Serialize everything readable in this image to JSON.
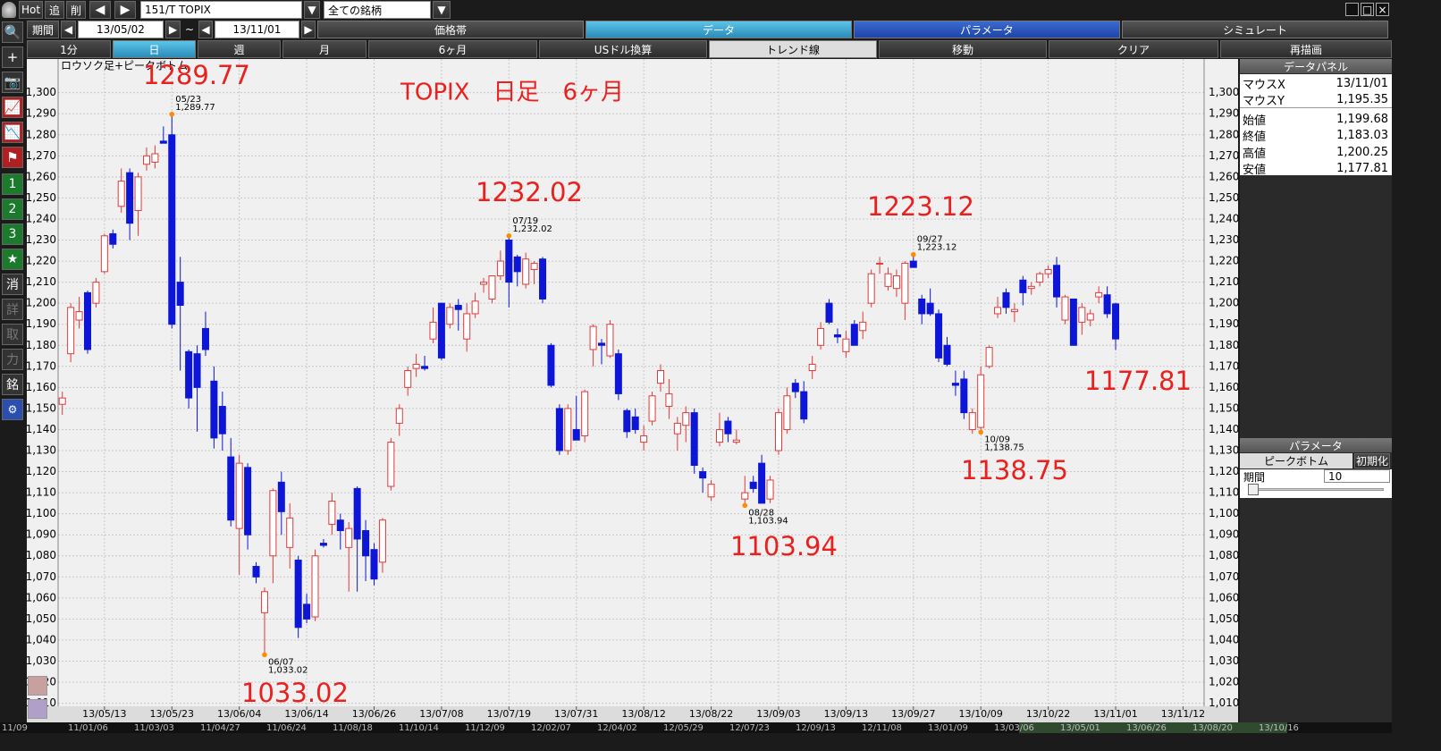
{
  "toolbar": {
    "hot": "Hot",
    "add": "追",
    "delete": "削",
    "symbol": "151/T TOPIX",
    "list": "全ての銘柄"
  },
  "period": {
    "label": "期間",
    "from": "13/05/02",
    "separator": "~",
    "to": "13/11/01"
  },
  "tabs": [
    "価格帯",
    "データ",
    "パラメータ",
    "シミュレート"
  ],
  "buttons": [
    "1分",
    "日",
    "週",
    "月",
    "6ヶ月",
    "USドル換算",
    "トレンド線",
    "移動",
    "クリア",
    "再描画"
  ],
  "side_tools": [
    "1",
    "2",
    "3",
    "★",
    "消",
    "詳",
    "取",
    "力",
    "銘"
  ],
  "data_panel": {
    "title": "データパネル",
    "rows": [
      [
        "マウスX",
        "13/11/01"
      ],
      [
        "マウスY",
        "1,195.35"
      ],
      [
        "始値",
        "1,199.68"
      ],
      [
        "終値",
        "1,183.03"
      ],
      [
        "高値",
        "1,200.25"
      ],
      [
        "安値",
        "1,177.81"
      ]
    ]
  },
  "param_panel": {
    "title": "パラメータ",
    "tab": "ピークボトム",
    "reset": "初期化",
    "field": "期間",
    "value": "10"
  },
  "timeline": [
    "11/09",
    "11/01/06",
    "11/03/03",
    "11/04/27",
    "11/06/24",
    "11/08/18",
    "11/10/14",
    "11/12/09",
    "12/02/07",
    "12/04/02",
    "12/05/29",
    "12/07/23",
    "12/09/13",
    "12/11/08",
    "13/01/09",
    "13/03/06",
    "13/05/01",
    "13/06/26",
    "13/08/20",
    "13/10/16"
  ],
  "chart_data": {
    "type": "candlestick",
    "indicator": "ロウソク足+ピークボトム",
    "title": "TOPIX　日足　6ヶ月",
    "categories": [
      null,
      null,
      null,
      null,
      null,
      "13/05/13",
      null,
      null,
      null,
      null,
      null,
      null,
      null,
      "13/05/23",
      null,
      null,
      null,
      null,
      null,
      null,
      null,
      "13/06/04",
      null,
      null,
      null,
      null,
      null,
      null,
      null,
      "13/06/14",
      null,
      null,
      null,
      null,
      null,
      null,
      null,
      "13/06/26",
      null,
      null,
      null,
      null,
      null,
      null,
      null,
      "13/07/08",
      null,
      null,
      null,
      null,
      null,
      null,
      null,
      "13/07/19",
      null,
      null,
      null,
      null,
      null,
      null,
      null,
      "13/07/31",
      null,
      null,
      null,
      null,
      null,
      null,
      null,
      "13/08/12",
      null,
      null,
      null,
      null,
      null,
      null,
      null,
      "13/08/22",
      null,
      null,
      null,
      null,
      null,
      null,
      null,
      "13/09/03",
      null,
      null,
      null,
      null,
      null,
      null,
      null,
      "13/09/13",
      null,
      null,
      null,
      null,
      null,
      null,
      null,
      "13/09/27",
      null,
      null,
      null,
      null,
      null,
      null,
      null,
      "13/10/09",
      null,
      null,
      null,
      null,
      null,
      null,
      null,
      "13/10/22",
      null,
      null,
      null,
      null,
      null,
      null,
      null,
      "13/11/01",
      null,
      null,
      null,
      null,
      null,
      null,
      null,
      "13/11/12",
      null,
      null
    ],
    "candles": [
      [
        1152,
        1158,
        1147,
        1155
      ],
      [
        1176,
        1200,
        1172,
        1198
      ],
      [
        1192,
        1203,
        1188,
        1196
      ],
      [
        1205,
        1206,
        1176,
        1178
      ],
      [
        1200,
        1212,
        1198,
        1210
      ],
      [
        1215,
        1233,
        1214,
        1232
      ],
      [
        1233,
        1235,
        1226,
        1228
      ],
      [
        1246,
        1264,
        1243,
        1258
      ],
      [
        1262,
        1264,
        1230,
        1238
      ],
      [
        1244,
        1262,
        1232,
        1260
      ],
      [
        1266,
        1274,
        1263,
        1270
      ],
      [
        1267,
        1275,
        1264,
        1271
      ],
      [
        1277,
        1284,
        1276,
        1276
      ],
      [
        1280,
        1289.77,
        1188,
        1190
      ],
      [
        1210,
        1222,
        1168,
        1199
      ],
      [
        1177,
        1178,
        1150,
        1155
      ],
      [
        1176,
        1180,
        1139,
        1160
      ],
      [
        1188,
        1196,
        1175,
        1178
      ],
      [
        1163,
        1170,
        1131,
        1136
      ],
      [
        1151,
        1158,
        1130,
        1138
      ],
      [
        1127,
        1136,
        1094,
        1097
      ],
      [
        1093,
        1128,
        1071,
        1124
      ],
      [
        1122,
        1124,
        1083,
        1090
      ],
      [
        1075,
        1077,
        1067,
        1070
      ],
      [
        1053,
        1065,
        1033.02,
        1063
      ],
      [
        1080,
        1112,
        1067,
        1111
      ],
      [
        1115,
        1120,
        1090,
        1101
      ],
      [
        1084,
        1105,
        1074,
        1098
      ],
      [
        1078,
        1080,
        1041,
        1046
      ],
      [
        1057,
        1062,
        1048,
        1050
      ],
      [
        1051,
        1083,
        1049,
        1080
      ],
      [
        1086,
        1088,
        1084,
        1085
      ],
      [
        1095,
        1110,
        1090,
        1106
      ],
      [
        1097,
        1100,
        1083,
        1092
      ],
      [
        1084,
        1096,
        1063,
        1093
      ],
      [
        1112,
        1113,
        1063,
        1088
      ],
      [
        1092,
        1097,
        1068,
        1080
      ],
      [
        1083,
        1086,
        1066,
        1069
      ],
      [
        1077,
        1098,
        1072,
        1097
      ],
      [
        1113,
        1136,
        1111,
        1134
      ],
      [
        1143,
        1152,
        1137,
        1150
      ],
      [
        1160,
        1170,
        1156,
        1168
      ],
      [
        1169,
        1176,
        1165,
        1171
      ],
      [
        1170,
        1175,
        1168,
        1169
      ],
      [
        1183,
        1198,
        1181,
        1191
      ],
      [
        1200,
        1200,
        1173,
        1174
      ],
      [
        1190,
        1200,
        1188,
        1198
      ],
      [
        1199,
        1202,
        1187,
        1197
      ],
      [
        1183,
        1200,
        1177,
        1195
      ],
      [
        1195,
        1205,
        1193,
        1201
      ],
      [
        1209,
        1212,
        1205,
        1210
      ],
      [
        1202,
        1213,
        1200,
        1213
      ],
      [
        1213,
        1225,
        1211,
        1220
      ],
      [
        1230,
        1232.02,
        1198,
        1210
      ],
      [
        1222,
        1223,
        1208,
        1215
      ],
      [
        1209,
        1224,
        1207,
        1221
      ],
      [
        1216,
        1220,
        1209,
        1219
      ],
      [
        1221,
        1222,
        1200,
        1202
      ],
      [
        1180,
        1181,
        1160,
        1161
      ],
      [
        1150,
        1152,
        1128,
        1130
      ],
      [
        1130,
        1152,
        1128,
        1150
      ],
      [
        1140,
        1156,
        1135,
        1135
      ],
      [
        1137,
        1159,
        1134,
        1158
      ],
      [
        1178,
        1190,
        1170,
        1189
      ],
      [
        1181,
        1183,
        1171,
        1180
      ],
      [
        1175,
        1192,
        1174,
        1190
      ],
      [
        1176,
        1178,
        1154,
        1157
      ],
      [
        1149,
        1150,
        1136,
        1139
      ],
      [
        1146,
        1150,
        1138,
        1140
      ],
      [
        1134,
        1142,
        1130,
        1137
      ],
      [
        1144,
        1158,
        1142,
        1156
      ],
      [
        1162,
        1171,
        1158,
        1168
      ],
      [
        1151,
        1164,
        1145,
        1157
      ],
      [
        1138,
        1146,
        1130,
        1143
      ],
      [
        1142,
        1151,
        1134,
        1148
      ],
      [
        1148,
        1150,
        1119,
        1123
      ],
      [
        1120,
        1122,
        1110,
        1117
      ],
      [
        1108,
        1116,
        1106,
        1114
      ],
      [
        1134,
        1148,
        1132,
        1140
      ],
      [
        1144,
        1146,
        1134,
        1138
      ],
      [
        1134,
        1140,
        1133,
        1135
      ],
      [
        1107,
        1118,
        1103.94,
        1110
      ],
      [
        1115,
        1118,
        1110,
        1112
      ],
      [
        1124,
        1128,
        1105,
        1105
      ],
      [
        1107,
        1118,
        1105,
        1116
      ],
      [
        1130,
        1150,
        1128,
        1148
      ],
      [
        1140,
        1160,
        1138,
        1156
      ],
      [
        1162,
        1164,
        1155,
        1158
      ],
      [
        1158,
        1163,
        1143,
        1145
      ],
      [
        1168,
        1175,
        1164,
        1171
      ],
      [
        1180,
        1191,
        1178,
        1188
      ],
      [
        1200,
        1202,
        1190,
        1191
      ],
      [
        1185,
        1188,
        1181,
        1184
      ],
      [
        1177,
        1187,
        1174,
        1183
      ],
      [
        1190,
        1192,
        1180,
        1180
      ],
      [
        1187,
        1196,
        1183,
        1191
      ],
      [
        1200,
        1216,
        1198,
        1214
      ],
      [
        1219,
        1222,
        1214,
        1219
      ],
      [
        1208,
        1217,
        1206,
        1214
      ],
      [
        1207,
        1216,
        1203,
        1213
      ],
      [
        1200,
        1220,
        1192,
        1219
      ],
      [
        1220,
        1223.12,
        1217,
        1217
      ],
      [
        1202,
        1204,
        1190,
        1195
      ],
      [
        1200,
        1207,
        1194,
        1195
      ],
      [
        1195,
        1197,
        1172,
        1174
      ],
      [
        1180,
        1184,
        1170,
        1171
      ],
      [
        1162,
        1168,
        1156,
        1161
      ],
      [
        1164,
        1168,
        1145,
        1148
      ],
      [
        1140,
        1150,
        1138,
        1148
      ],
      [
        1141,
        1170,
        1138.75,
        1166
      ],
      [
        1170,
        1180,
        1169,
        1179
      ],
      [
        1195,
        1203,
        1193,
        1198
      ],
      [
        1205,
        1207,
        1195,
        1198
      ],
      [
        1196,
        1200,
        1191,
        1197
      ],
      [
        1211,
        1213,
        1199,
        1205
      ],
      [
        1207,
        1210,
        1204,
        1208
      ],
      [
        1210,
        1215,
        1208,
        1214
      ],
      [
        1214,
        1218,
        1212,
        1216
      ],
      [
        1218,
        1222,
        1198,
        1203
      ],
      [
        1192,
        1204,
        1190,
        1203
      ],
      [
        1202,
        1202,
        1180,
        1180
      ],
      [
        1191,
        1200,
        1185,
        1198
      ],
      [
        1192,
        1197,
        1189,
        1195
      ],
      [
        1203,
        1208,
        1200,
        1205
      ],
      [
        1204,
        1208,
        1193,
        1195
      ],
      [
        1199.68,
        1200.25,
        1177.81,
        1183.03
      ],
      null,
      null,
      null,
      null,
      null,
      null,
      null,
      null,
      null,
      null
    ],
    "peak_labels": [
      {
        "date": "05/23",
        "price": "1,289.77"
      },
      {
        "date": "06/07",
        "price": "1,033.02"
      },
      {
        "date": "07/19",
        "price": "1,232.02"
      },
      {
        "date": "08/28",
        "price": "1,103.94"
      },
      {
        "date": "09/27",
        "price": "1,223.12"
      },
      {
        "date": "10/09",
        "price": "1,138.75"
      }
    ],
    "callouts": [
      "1289.77",
      "1232.02",
      "1223.12",
      "1033.02",
      "1103.94",
      "1138.75",
      "1177.81"
    ],
    "ylim": [
      1006,
      1316
    ],
    "yticks": [
      {
        "value": 1010,
        "label": "1,010"
      },
      {
        "value": 1020,
        "label": "1,020"
      },
      {
        "value": 1030,
        "label": "1,030"
      },
      {
        "value": 1040,
        "label": "1,040"
      },
      {
        "value": 1050,
        "label": "1,050"
      },
      {
        "value": 1060,
        "label": "1,060"
      },
      {
        "value": 1070,
        "label": "1,070"
      },
      {
        "value": 1080,
        "label": "1,080"
      },
      {
        "value": 1090,
        "label": "1,090"
      },
      {
        "value": 1100,
        "label": "1,100"
      },
      {
        "value": 1110,
        "label": "1,110"
      },
      {
        "value": 1120,
        "label": "1,120"
      },
      {
        "value": 1130,
        "label": "1,130"
      },
      {
        "value": 1140,
        "label": "1,140"
      },
      {
        "value": 1150,
        "label": "1,150"
      },
      {
        "value": 1160,
        "label": "1,160"
      },
      {
        "value": 1170,
        "label": "1,170"
      },
      {
        "value": 1180,
        "label": "1,180"
      },
      {
        "value": 1190,
        "label": "1,190"
      },
      {
        "value": 1200,
        "label": "1,200"
      },
      {
        "value": 1210,
        "label": "1,210"
      },
      {
        "value": 1220,
        "label": "1,220"
      },
      {
        "value": 1230,
        "label": "1,230"
      },
      {
        "value": 1240,
        "label": "1,240"
      },
      {
        "value": 1250,
        "label": "1,250"
      },
      {
        "value": 1260,
        "label": "1,260"
      },
      {
        "value": 1270,
        "label": "1,270"
      },
      {
        "value": 1280,
        "label": "1,280"
      },
      {
        "value": 1290,
        "label": "1,290"
      },
      {
        "value": 1300,
        "label": "1,300"
      }
    ],
    "grid": true,
    "up_color": "#e03a3a",
    "down_color": "#0d16d6",
    "peak_color": "#ff8c00",
    "callout_color": "#e8201e"
  }
}
